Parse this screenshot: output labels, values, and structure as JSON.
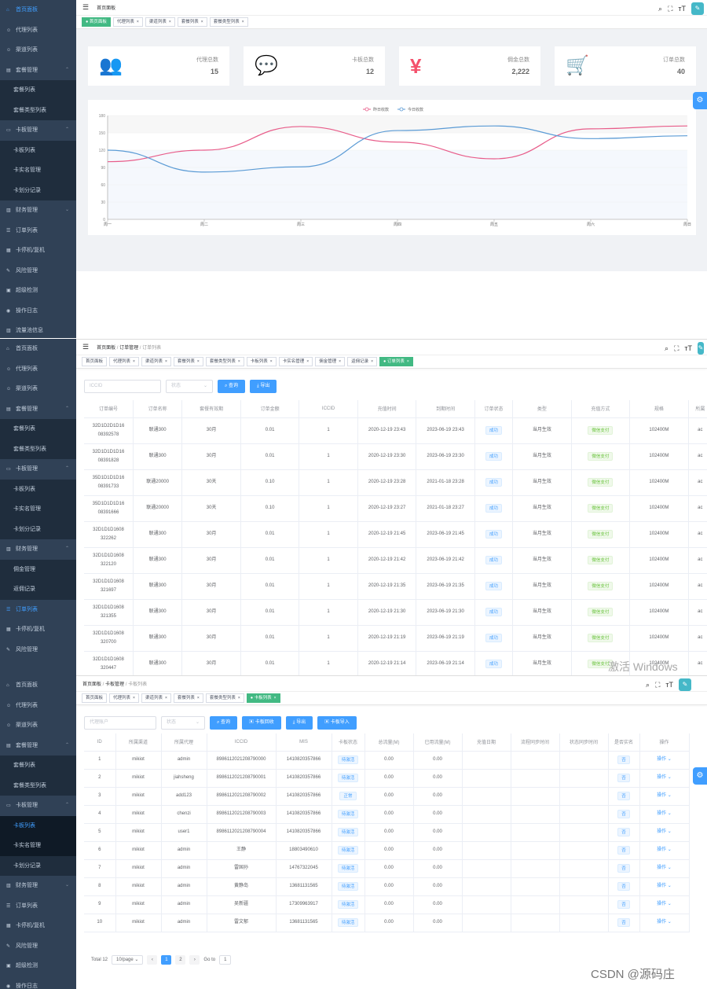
{
  "s1": {
    "sidebar": [
      {
        "icon": "⌂",
        "label": "首页面板",
        "active": true
      },
      {
        "icon": "☺",
        "label": "代理列表"
      },
      {
        "icon": "☺",
        "label": "渠道列表"
      },
      {
        "icon": "▤",
        "label": "套餐管理",
        "ch": "^"
      },
      {
        "label": "套餐列表",
        "sub": true
      },
      {
        "label": "套餐类型列表",
        "sub": true
      },
      {
        "icon": "▭",
        "label": "卡板管理",
        "ch": "^"
      },
      {
        "label": "卡板列表",
        "sub": true
      },
      {
        "label": "卡实名管理",
        "sub": true
      },
      {
        "label": "卡划分记录",
        "sub": true
      },
      {
        "icon": "▥",
        "label": "财务管理",
        "ch": "v"
      },
      {
        "icon": "☰",
        "label": "订单列表"
      },
      {
        "icon": "▦",
        "label": "卡停机/复机"
      },
      {
        "icon": "✎",
        "label": "风险管理"
      },
      {
        "icon": "▣",
        "label": "超级检测"
      },
      {
        "icon": "◉",
        "label": "操作日志"
      },
      {
        "icon": "▥",
        "label": "流量池信息"
      }
    ],
    "breadcrumb": [
      "首页面板"
    ],
    "tags": [
      {
        "label": "首页面板",
        "on": true
      },
      {
        "label": "代理列表"
      },
      {
        "label": "渠道列表"
      },
      {
        "label": "套餐列表"
      },
      {
        "label": "套餐类型列表"
      }
    ],
    "cards": [
      {
        "icon": "people-icon",
        "glyph": "👥",
        "color": "#40c9c6",
        "label": "代理总数",
        "value": "15"
      },
      {
        "icon": "message-icon",
        "glyph": "💬",
        "color": "#36a3f7",
        "label": "卡板总数",
        "value": "12"
      },
      {
        "icon": "yen-icon",
        "glyph": "¥",
        "color": "#f4516c",
        "label": "佣金总数",
        "value": "2,222"
      },
      {
        "icon": "cart-icon",
        "glyph": "🛒",
        "color": "#34bfa3",
        "label": "订单总数",
        "value": "40"
      }
    ]
  },
  "chart_data": {
    "type": "line",
    "categories": [
      "周一",
      "周二",
      "周三",
      "周四",
      "周五",
      "周六",
      "周日"
    ],
    "series": [
      {
        "name": "昨日收款",
        "color": "#e85d8a",
        "values": [
          100,
          120,
          161,
          134,
          105,
          157,
          162
        ]
      },
      {
        "name": "今日收款",
        "color": "#5b9bd5",
        "values": [
          120,
          82,
          91,
          154,
          162,
          140,
          145
        ]
      }
    ],
    "yticks": [
      "0",
      "30",
      "60",
      "90",
      "120",
      "150",
      "180"
    ],
    "ylim": [
      0,
      180
    ]
  },
  "s2": {
    "sidebar": [
      {
        "icon": "⌂",
        "label": "首页面板"
      },
      {
        "icon": "☺",
        "label": "代理列表"
      },
      {
        "icon": "☺",
        "label": "渠道列表"
      },
      {
        "icon": "▤",
        "label": "套餐管理",
        "ch": "^"
      },
      {
        "label": "套餐列表",
        "sub": true
      },
      {
        "label": "套餐类型列表",
        "sub": true
      },
      {
        "icon": "▭",
        "label": "卡板管理",
        "ch": "^"
      },
      {
        "label": "卡板列表",
        "sub": true
      },
      {
        "label": "卡实名管理",
        "sub": true
      },
      {
        "label": "卡划分记录",
        "sub": true
      },
      {
        "icon": "▥",
        "label": "财务管理",
        "ch": "^"
      },
      {
        "label": "佣金管理",
        "sub": true
      },
      {
        "label": "返佣记录",
        "sub": true
      },
      {
        "icon": "☰",
        "label": "订单列表",
        "active": true
      },
      {
        "icon": "▦",
        "label": "卡停机/复机"
      },
      {
        "icon": "✎",
        "label": "风险管理"
      }
    ],
    "breadcrumb": [
      "首页面板",
      "订单管理",
      "订单列表"
    ],
    "tags": [
      {
        "label": "首页面板"
      },
      {
        "label": "代理列表"
      },
      {
        "label": "渠道列表"
      },
      {
        "label": "套餐列表"
      },
      {
        "label": "套餐类型列表"
      },
      {
        "label": "卡板列表"
      },
      {
        "label": "卡实名管理"
      },
      {
        "label": "佣金管理"
      },
      {
        "label": "返佣记录"
      },
      {
        "label": "订单列表",
        "on": true
      }
    ],
    "filters": {
      "iccid": "ICCID",
      "status": "状态",
      "search": "查询",
      "export": "导出"
    },
    "columns": [
      "订单编号",
      "订单名称",
      "套餐有效期",
      "订单金额",
      "ICCID",
      "充值时间",
      "到期时间",
      "订单状态",
      "类型",
      "充值方式",
      "规格",
      "所属"
    ],
    "rows": [
      [
        "32D1D2D1D16\n08392578",
        "联通300",
        "30月",
        "0.01",
        "1",
        "2020-12-19 23:43",
        "2023-06-19 23:43",
        "成功",
        "当月生效",
        "微信支付",
        "102400M",
        "ac"
      ],
      [
        "32D1D1D1D16\n08391828",
        "联通300",
        "30月",
        "0.01",
        "1",
        "2020-12-19 23:30",
        "2023-06-19 23:30",
        "成功",
        "当月生效",
        "微信支付",
        "102400M",
        "ac"
      ],
      [
        "35D1D1D1D16\n08391733",
        "联通20000",
        "30天",
        "0.10",
        "1",
        "2020-12-19 23:28",
        "2021-01-18 23:28",
        "成功",
        "当月生效",
        "微信支付",
        "102400M",
        "ac"
      ],
      [
        "35D1D1D1D16\n08391666",
        "联通20000",
        "30天",
        "0.10",
        "1",
        "2020-12-19 23:27",
        "2021-01-18 23:27",
        "成功",
        "当月生效",
        "微信支付",
        "102400M",
        "ac"
      ],
      [
        "32D1D1D1608\n322262",
        "联通300",
        "30月",
        "0.01",
        "1",
        "2020-12-19 21:45",
        "2023-06-19 21:45",
        "成功",
        "当月生效",
        "微信支付",
        "102400M",
        "ac"
      ],
      [
        "32D1D1D1608\n322120",
        "联通300",
        "30月",
        "0.01",
        "1",
        "2020-12-19 21:42",
        "2023-06-19 21:42",
        "成功",
        "当月生效",
        "微信支付",
        "102400M",
        "ac"
      ],
      [
        "32D1D1D1608\n321697",
        "联通300",
        "30月",
        "0.01",
        "1",
        "2020-12-19 21:35",
        "2023-06-19 21:35",
        "成功",
        "当月生效",
        "微信支付",
        "102400M",
        "ac"
      ],
      [
        "32D1D1D1608\n321355",
        "联通300",
        "30月",
        "0.01",
        "1",
        "2020-12-19 21:30",
        "2023-06-19 21:30",
        "成功",
        "当月生效",
        "微信支付",
        "102400M",
        "ac"
      ],
      [
        "32D1D1D1608\n320700",
        "联通300",
        "30月",
        "0.01",
        "1",
        "2020-12-19 21:19",
        "2023-06-19 21:19",
        "成功",
        "当月生效",
        "微信支付",
        "102400M",
        "ac"
      ],
      [
        "32D1D1D1608\n320447",
        "联通300",
        "30月",
        "0.01",
        "1",
        "2020-12-19 21:14",
        "2023-06-19 21:14",
        "成功",
        "当月生效",
        "微信支付",
        "102400M",
        "ac"
      ]
    ],
    "watermark": "激活 Windows"
  },
  "s3": {
    "sidebar": [
      {
        "icon": "⌂",
        "label": "首页面板"
      },
      {
        "icon": "☺",
        "label": "代理列表"
      },
      {
        "icon": "☺",
        "label": "渠道列表"
      },
      {
        "icon": "▤",
        "label": "套餐管理",
        "ch": "^"
      },
      {
        "label": "套餐列表",
        "sub": true
      },
      {
        "label": "套餐类型列表",
        "sub": true
      },
      {
        "icon": "▭",
        "label": "卡板管理",
        "ch": "^"
      },
      {
        "label": "卡板列表",
        "sub": true,
        "active": true,
        "dk": true
      },
      {
        "label": "卡实名管理",
        "sub": true,
        "dk": true
      },
      {
        "label": "卡划分记录",
        "sub": true
      },
      {
        "icon": "▥",
        "label": "财务管理",
        "ch": "v"
      },
      {
        "icon": "☰",
        "label": "订单列表"
      },
      {
        "icon": "▦",
        "label": "卡停机/复机"
      },
      {
        "icon": "✎",
        "label": "风险管理"
      },
      {
        "icon": "▣",
        "label": "超级检测"
      },
      {
        "icon": "◉",
        "label": "操作日志"
      }
    ],
    "breadcrumb": [
      "首页面板",
      "卡板管理",
      "卡板列表"
    ],
    "tags": [
      {
        "label": "首页面板"
      },
      {
        "label": "代理列表"
      },
      {
        "label": "渠道列表"
      },
      {
        "label": "套餐列表"
      },
      {
        "label": "套餐类型列表"
      },
      {
        "label": "卡板列表",
        "on": true
      }
    ],
    "filters": {
      "agent": "代理账户",
      "status": "状态",
      "search": "查询",
      "recycle": "卡板回收",
      "export": "导出",
      "import": "卡板导入"
    },
    "columns": [
      "ID",
      "所属渠道",
      "所属代理",
      "ICCID",
      "MIS",
      "卡板状态",
      "总流量(M)",
      "已用流量(M)",
      "充值日期",
      "流程同步时间",
      "状态同步时间",
      "是否实名",
      "操作"
    ],
    "rows": [
      [
        "1",
        "mikiot",
        "admin",
        "8986112021208790000",
        "1410820357866",
        "待激活",
        "0.00",
        "0.00",
        "",
        "",
        "",
        "否",
        "操作 ⌄"
      ],
      [
        "2",
        "mikiot",
        "jiahsheng",
        "8986112021208790001",
        "1410820357866",
        "待激活",
        "0.00",
        "0.00",
        "",
        "",
        "",
        "否",
        "操作 ⌄"
      ],
      [
        "3",
        "mikiot",
        "add123",
        "8986112021208790002",
        "1410820357866",
        "正常",
        "0.00",
        "0.00",
        "",
        "",
        "",
        "否",
        "操作 ⌄"
      ],
      [
        "4",
        "mikiot",
        "chenzi",
        "8986112021208790003",
        "1410820357866",
        "待激活",
        "0.00",
        "0.00",
        "",
        "",
        "",
        "否",
        "操作 ⌄"
      ],
      [
        "5",
        "mikiot",
        "user1",
        "8986112021208790004",
        "1410820357866",
        "待激活",
        "0.00",
        "0.00",
        "",
        "",
        "",
        "否",
        "操作 ⌄"
      ],
      [
        "6",
        "mikiot",
        "admin",
        "王静",
        "18803490610",
        "待激活",
        "0.00",
        "0.00",
        "",
        "",
        "",
        "否",
        "操作 ⌄"
      ],
      [
        "7",
        "mikiot",
        "admin",
        "雷国孙",
        "14767322045",
        "待激活",
        "0.00",
        "0.00",
        "",
        "",
        "",
        "否",
        "操作 ⌄"
      ],
      [
        "8",
        "mikiot",
        "admin",
        "黄静岛",
        "13681131565",
        "待激活",
        "0.00",
        "0.00",
        "",
        "",
        "",
        "否",
        "操作 ⌄"
      ],
      [
        "9",
        "mikiot",
        "admin",
        "吴新疆",
        "17309963917",
        "待激活",
        "0.00",
        "0.00",
        "",
        "",
        "",
        "否",
        "操作 ⌄"
      ],
      [
        "10",
        "mikiot",
        "admin",
        "雷文郁",
        "13681131565",
        "待激活",
        "0.00",
        "0.00",
        "",
        "",
        "",
        "否",
        "操作 ⌄"
      ]
    ],
    "pager": {
      "total": "Total 12",
      "size": "10/page",
      "pages": [
        "1",
        "2"
      ],
      "goto": "Go to",
      "goto_value": "1"
    },
    "watermark": "CSDN @源码庄"
  }
}
